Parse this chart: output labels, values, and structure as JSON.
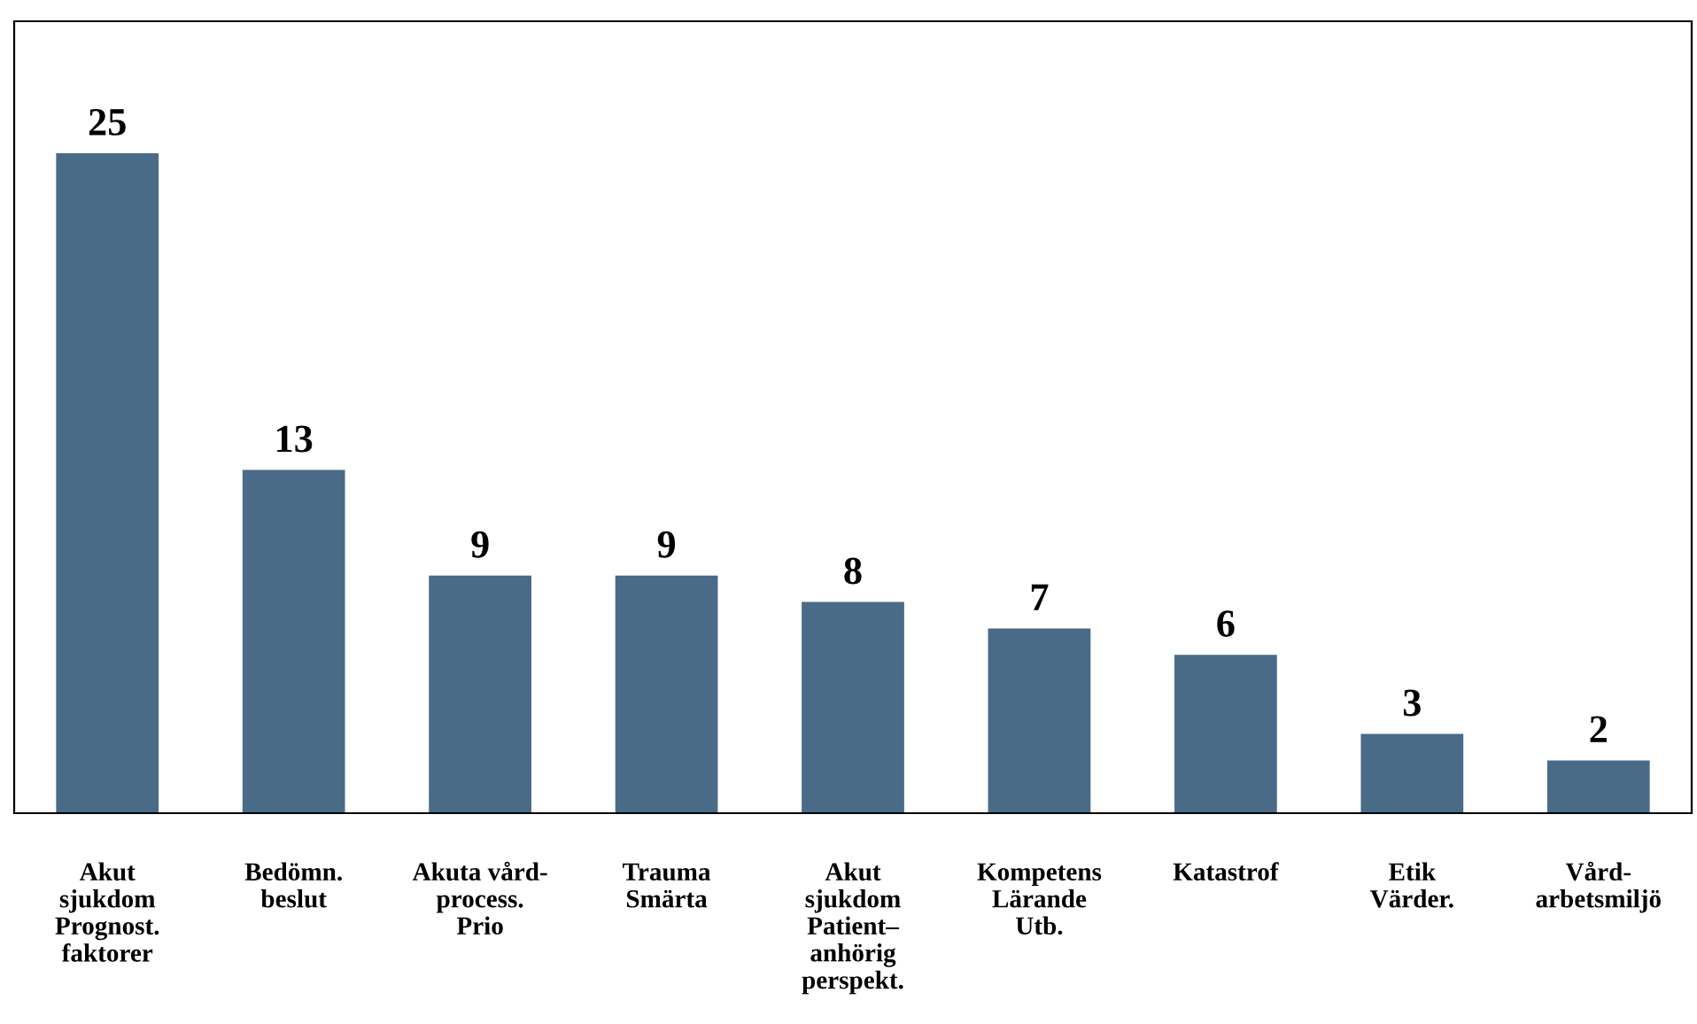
{
  "chart_data": {
    "type": "bar",
    "categories": [
      "Akut\nsjukdom\nPrognost.\nfaktorer",
      "Bedömn.\nbeslut",
      "Akuta vård-\nprocess.\nPrio",
      "Trauma\nSmärta",
      "Akut\nsjukdom\nPatient–\nanhörig\nperspekt.",
      "Kompetens\nLärande\nUtb.",
      "Katastrof",
      "Etik\nVärder.",
      "Vård-\narbetsmiljö"
    ],
    "values": [
      25,
      13,
      9,
      9,
      8,
      7,
      6,
      3,
      2
    ],
    "color": "#4a6b87",
    "data_labels": true
  }
}
